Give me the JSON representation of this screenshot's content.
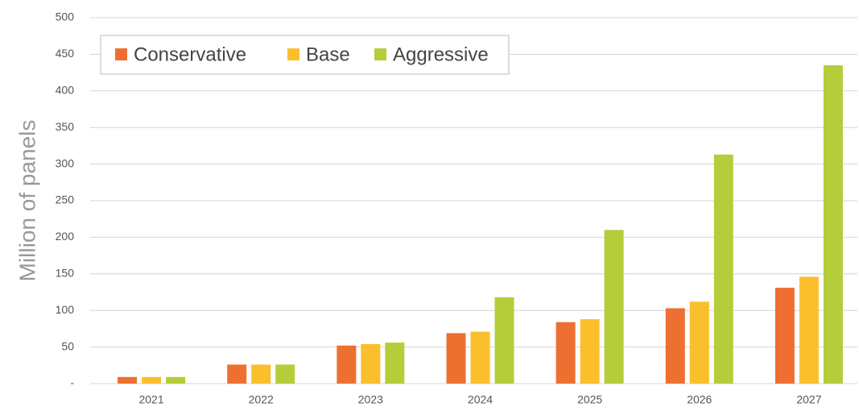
{
  "chart_data": {
    "type": "bar",
    "y_label": "Million of panels",
    "categories": [
      "2021",
      "2022",
      "2023",
      "2024",
      "2025",
      "2026",
      "2027"
    ],
    "series": [
      {
        "name": "Conservative",
        "color": "#ed7031",
        "values": [
          9,
          26,
          52,
          69,
          84,
          103,
          131
        ]
      },
      {
        "name": "Base",
        "color": "#fbbf2e",
        "values": [
          9,
          26,
          54,
          71,
          88,
          112,
          146
        ]
      },
      {
        "name": "Aggressive",
        "color": "#b5cd3a",
        "values": [
          9,
          26,
          56,
          118,
          210,
          313,
          435
        ]
      }
    ],
    "ylim": [
      0,
      500
    ],
    "yticks": [
      {
        "value": 0,
        "label": "-"
      },
      50,
      100,
      150,
      200,
      250,
      300,
      350,
      400,
      450,
      500
    ],
    "grid": true,
    "legend": "upper left"
  }
}
